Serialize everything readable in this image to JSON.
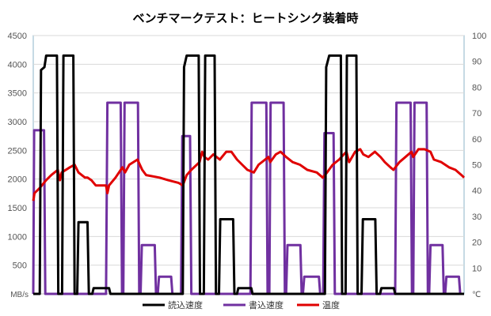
{
  "chart_data": {
    "type": "line",
    "title": "ベンチマークテスト：ヒートシンク装着時",
    "y_left": {
      "unit": "MB/s",
      "ylim": [
        0,
        4500
      ],
      "ticks": [
        "4500",
        "4000",
        "3500",
        "3000",
        "2500",
        "2000",
        "1500",
        "1000",
        "500"
      ]
    },
    "y_right": {
      "unit": "℃",
      "ylim": [
        0,
        100
      ],
      "ticks": [
        "100",
        "90",
        "80",
        "70",
        "60",
        "50",
        "40",
        "30",
        "20",
        "10"
      ]
    },
    "x_range": [
      0,
      100
    ],
    "grid": "horizontal",
    "legend_position": "bottom",
    "series": [
      {
        "name": "読込速度",
        "color": "#000000",
        "axis": "left",
        "points": [
          [
            0,
            0
          ],
          [
            1.5,
            0
          ],
          [
            1.8,
            3900
          ],
          [
            2.6,
            3950
          ],
          [
            3.0,
            4150
          ],
          [
            5.5,
            4150
          ],
          [
            5.8,
            0
          ],
          [
            6.7,
            0
          ],
          [
            7.0,
            4150
          ],
          [
            9.3,
            4150
          ],
          [
            9.6,
            0
          ],
          [
            10.2,
            0
          ],
          [
            10.5,
            1250
          ],
          [
            12.6,
            1250
          ],
          [
            12.9,
            0
          ],
          [
            13.7,
            0
          ],
          [
            14.0,
            100
          ],
          [
            17.6,
            100
          ],
          [
            17.9,
            0
          ],
          [
            34.7,
            0
          ],
          [
            35.0,
            3950
          ],
          [
            35.6,
            4150
          ],
          [
            38.4,
            4150
          ],
          [
            38.7,
            0
          ],
          [
            39.6,
            0
          ],
          [
            39.9,
            4150
          ],
          [
            42.1,
            4150
          ],
          [
            42.4,
            0
          ],
          [
            43.1,
            0
          ],
          [
            43.4,
            1300
          ],
          [
            46.4,
            1300
          ],
          [
            46.7,
            0
          ],
          [
            47.3,
            0
          ],
          [
            47.6,
            100
          ],
          [
            50.6,
            100
          ],
          [
            50.9,
            0
          ],
          [
            67.7,
            0
          ],
          [
            68.0,
            3950
          ],
          [
            68.7,
            4150
          ],
          [
            71.4,
            4150
          ],
          [
            71.7,
            0
          ],
          [
            72.5,
            0
          ],
          [
            72.8,
            4150
          ],
          [
            75.0,
            4150
          ],
          [
            75.3,
            0
          ],
          [
            76.2,
            0
          ],
          [
            76.5,
            1300
          ],
          [
            79.4,
            1300
          ],
          [
            79.7,
            0
          ],
          [
            80.5,
            0
          ],
          [
            80.8,
            100
          ],
          [
            83.7,
            100
          ],
          [
            84.0,
            0
          ],
          [
            100,
            0
          ]
        ]
      },
      {
        "name": "書込速度",
        "color": "#7030a0",
        "axis": "left",
        "points": [
          [
            0,
            0
          ],
          [
            0.2,
            2850
          ],
          [
            2.5,
            2850
          ],
          [
            2.8,
            0
          ],
          [
            16.9,
            0
          ],
          [
            17.2,
            3330
          ],
          [
            20.3,
            3330
          ],
          [
            20.6,
            0
          ],
          [
            20.9,
            0
          ],
          [
            21.2,
            3330
          ],
          [
            24.3,
            3330
          ],
          [
            24.6,
            0
          ],
          [
            24.9,
            0
          ],
          [
            25.2,
            850
          ],
          [
            28.2,
            850
          ],
          [
            28.5,
            0
          ],
          [
            28.9,
            0
          ],
          [
            29.2,
            300
          ],
          [
            32.0,
            300
          ],
          [
            32.3,
            0
          ],
          [
            34.3,
            0
          ],
          [
            34.6,
            2750
          ],
          [
            36.4,
            2750
          ],
          [
            36.7,
            0
          ],
          [
            50.4,
            0
          ],
          [
            50.7,
            3330
          ],
          [
            54.1,
            3330
          ],
          [
            54.4,
            0
          ],
          [
            54.8,
            0
          ],
          [
            55.1,
            3330
          ],
          [
            58.1,
            3330
          ],
          [
            58.4,
            0
          ],
          [
            58.7,
            0
          ],
          [
            59.0,
            850
          ],
          [
            62.0,
            850
          ],
          [
            62.3,
            0
          ],
          [
            62.6,
            0
          ],
          [
            62.9,
            300
          ],
          [
            66.3,
            300
          ],
          [
            66.6,
            0
          ],
          [
            67.3,
            0
          ],
          [
            67.6,
            2800
          ],
          [
            69.7,
            2800
          ],
          [
            70.0,
            0
          ],
          [
            84.0,
            0
          ],
          [
            84.3,
            3330
          ],
          [
            87.6,
            3330
          ],
          [
            87.9,
            0
          ],
          [
            88.2,
            0
          ],
          [
            88.5,
            3330
          ],
          [
            91.3,
            3330
          ],
          [
            91.6,
            0
          ],
          [
            91.9,
            0
          ],
          [
            92.2,
            850
          ],
          [
            95.0,
            850
          ],
          [
            95.3,
            0
          ],
          [
            95.6,
            0
          ],
          [
            95.9,
            300
          ],
          [
            98.8,
            300
          ],
          [
            99.1,
            0
          ],
          [
            100,
            0
          ]
        ]
      },
      {
        "name": "温度",
        "color": "#e00000",
        "axis": "right",
        "points": [
          [
            0,
            36
          ],
          [
            0.3,
            39
          ],
          [
            1.5,
            41
          ],
          [
            3.0,
            44
          ],
          [
            4.2,
            46
          ],
          [
            5.7,
            48
          ],
          [
            6.2,
            44
          ],
          [
            6.6,
            47
          ],
          [
            8.5,
            49
          ],
          [
            9.6,
            50
          ],
          [
            10.5,
            47
          ],
          [
            12.0,
            45
          ],
          [
            12.6,
            45
          ],
          [
            13.5,
            44
          ],
          [
            14.5,
            42
          ],
          [
            16.9,
            42
          ],
          [
            17.2,
            39
          ],
          [
            17.6,
            42
          ],
          [
            19.1,
            45
          ],
          [
            20.7,
            49
          ],
          [
            21.3,
            47
          ],
          [
            22.3,
            50
          ],
          [
            24.2,
            52
          ],
          [
            25.3,
            48
          ],
          [
            26.2,
            46
          ],
          [
            29.3,
            45
          ],
          [
            31.3,
            44
          ],
          [
            33.7,
            43
          ],
          [
            34.7,
            42
          ],
          [
            35.6,
            46
          ],
          [
            36.7,
            48
          ],
          [
            38.6,
            51
          ],
          [
            39.2,
            55
          ],
          [
            39.7,
            53
          ],
          [
            40.6,
            52
          ],
          [
            41.8,
            54
          ],
          [
            43.3,
            52
          ],
          [
            44.8,
            55
          ],
          [
            46.0,
            55
          ],
          [
            47.3,
            52
          ],
          [
            48.5,
            50
          ],
          [
            49.7,
            48
          ],
          [
            51.2,
            47
          ],
          [
            52.3,
            50
          ],
          [
            54.6,
            53
          ],
          [
            55.0,
            51
          ],
          [
            56.3,
            54
          ],
          [
            57.4,
            55
          ],
          [
            58.7,
            53
          ],
          [
            60.2,
            51
          ],
          [
            61.9,
            50
          ],
          [
            63.6,
            48
          ],
          [
            65.8,
            47
          ],
          [
            67.2,
            45
          ],
          [
            68.2,
            47
          ],
          [
            69.5,
            50
          ],
          [
            71.0,
            52
          ],
          [
            72.1,
            54
          ],
          [
            72.7,
            55
          ],
          [
            73.3,
            51
          ],
          [
            74.7,
            55
          ],
          [
            75.9,
            56
          ],
          [
            76.6,
            54
          ],
          [
            77.8,
            53
          ],
          [
            79.3,
            55
          ],
          [
            80.6,
            53
          ],
          [
            81.6,
            51
          ],
          [
            82.9,
            49
          ],
          [
            83.6,
            48
          ],
          [
            85.0,
            51
          ],
          [
            86.4,
            53
          ],
          [
            87.8,
            55
          ],
          [
            88.2,
            53
          ],
          [
            89.4,
            56
          ],
          [
            90.8,
            56
          ],
          [
            92.2,
            55
          ],
          [
            93.0,
            52
          ],
          [
            94.7,
            51
          ],
          [
            96.5,
            49
          ],
          [
            98.0,
            48
          ],
          [
            99.4,
            46
          ],
          [
            100,
            45
          ]
        ]
      }
    ]
  }
}
